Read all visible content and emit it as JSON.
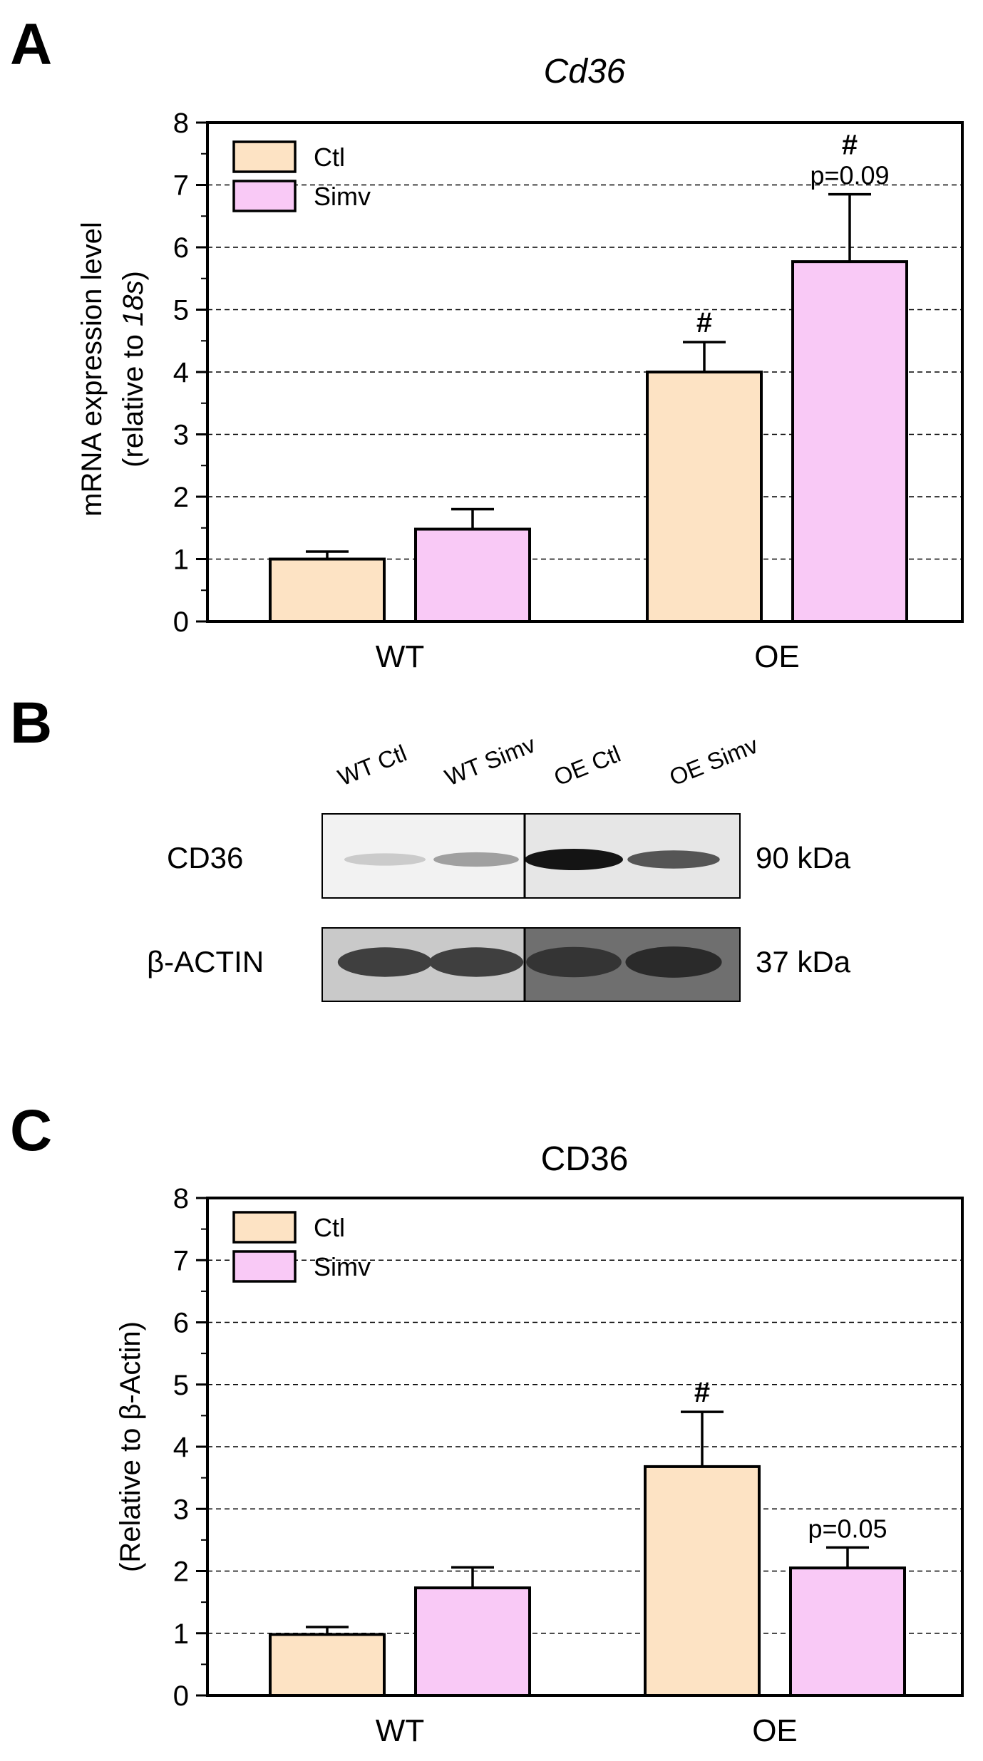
{
  "panels": {
    "a": {
      "letter": "A"
    },
    "b": {
      "letter": "B"
    },
    "c": {
      "letter": "C"
    }
  },
  "colors": {
    "ctl": "#fde3c4",
    "simv": "#f9c9f6",
    "edge": "#000000",
    "grid": "#000000"
  },
  "chart_data": [
    {
      "type": "bar",
      "title": "Cd36",
      "ylabel_line1": "mRNA expression level",
      "ylabel_line2_prefix": "(relative to ",
      "ylabel_line2_italic": "18s",
      "ylabel_line2_suffix": ")",
      "categories": [
        "WT",
        "OE"
      ],
      "ylim": [
        0,
        8
      ],
      "yticks": [
        "0",
        "1",
        "2",
        "3",
        "4",
        "5",
        "6",
        "7",
        "8"
      ],
      "grid": "dashed horizontal at each integer",
      "legend": {
        "placement": "top-left",
        "entries": [
          "Ctl",
          "Simv"
        ]
      },
      "series": [
        {
          "name": "Ctl",
          "values": [
            1.0,
            4.0
          ],
          "errors": [
            0.12,
            0.48
          ]
        },
        {
          "name": "Simv",
          "values": [
            1.48,
            5.77
          ],
          "errors": [
            0.32,
            1.08
          ]
        }
      ],
      "annotations": [
        {
          "category": "OE",
          "series": "Ctl",
          "symbol": "#"
        },
        {
          "category": "OE",
          "series": "Simv",
          "symbol": "#",
          "text": "p=0.09"
        }
      ]
    },
    {
      "type": "table",
      "lanes": [
        "WT Ctl",
        "WT Simv",
        "OE Ctl",
        "OE Simv"
      ],
      "rows": [
        {
          "protein": "CD36",
          "size": "90 kDa",
          "intensity": [
            0.15,
            0.35,
            1.0,
            0.7
          ]
        },
        {
          "protein": "β-ACTIN",
          "size": "37 kDa",
          "intensity": [
            0.8,
            0.8,
            0.85,
            0.9
          ]
        }
      ]
    },
    {
      "type": "bar",
      "title": "CD36",
      "ylabel": "(Relative to β-Actin)",
      "categories": [
        "WT",
        "OE"
      ],
      "ylim": [
        0,
        8
      ],
      "yticks": [
        "0",
        "1",
        "2",
        "3",
        "4",
        "5",
        "6",
        "7",
        "8"
      ],
      "grid": "dashed horizontal at each integer",
      "legend": {
        "placement": "top-left",
        "entries": [
          "Ctl",
          "Simv"
        ]
      },
      "series": [
        {
          "name": "Ctl",
          "values": [
            0.98,
            3.68
          ],
          "errors": [
            0.12,
            0.88
          ]
        },
        {
          "name": "Simv",
          "values": [
            1.73,
            2.05
          ],
          "errors": [
            0.33,
            0.33
          ]
        }
      ],
      "annotations": [
        {
          "category": "OE",
          "series": "Ctl",
          "symbol": "#"
        },
        {
          "category": "OE",
          "series": "Simv",
          "text": "p=0.05"
        }
      ]
    }
  ]
}
